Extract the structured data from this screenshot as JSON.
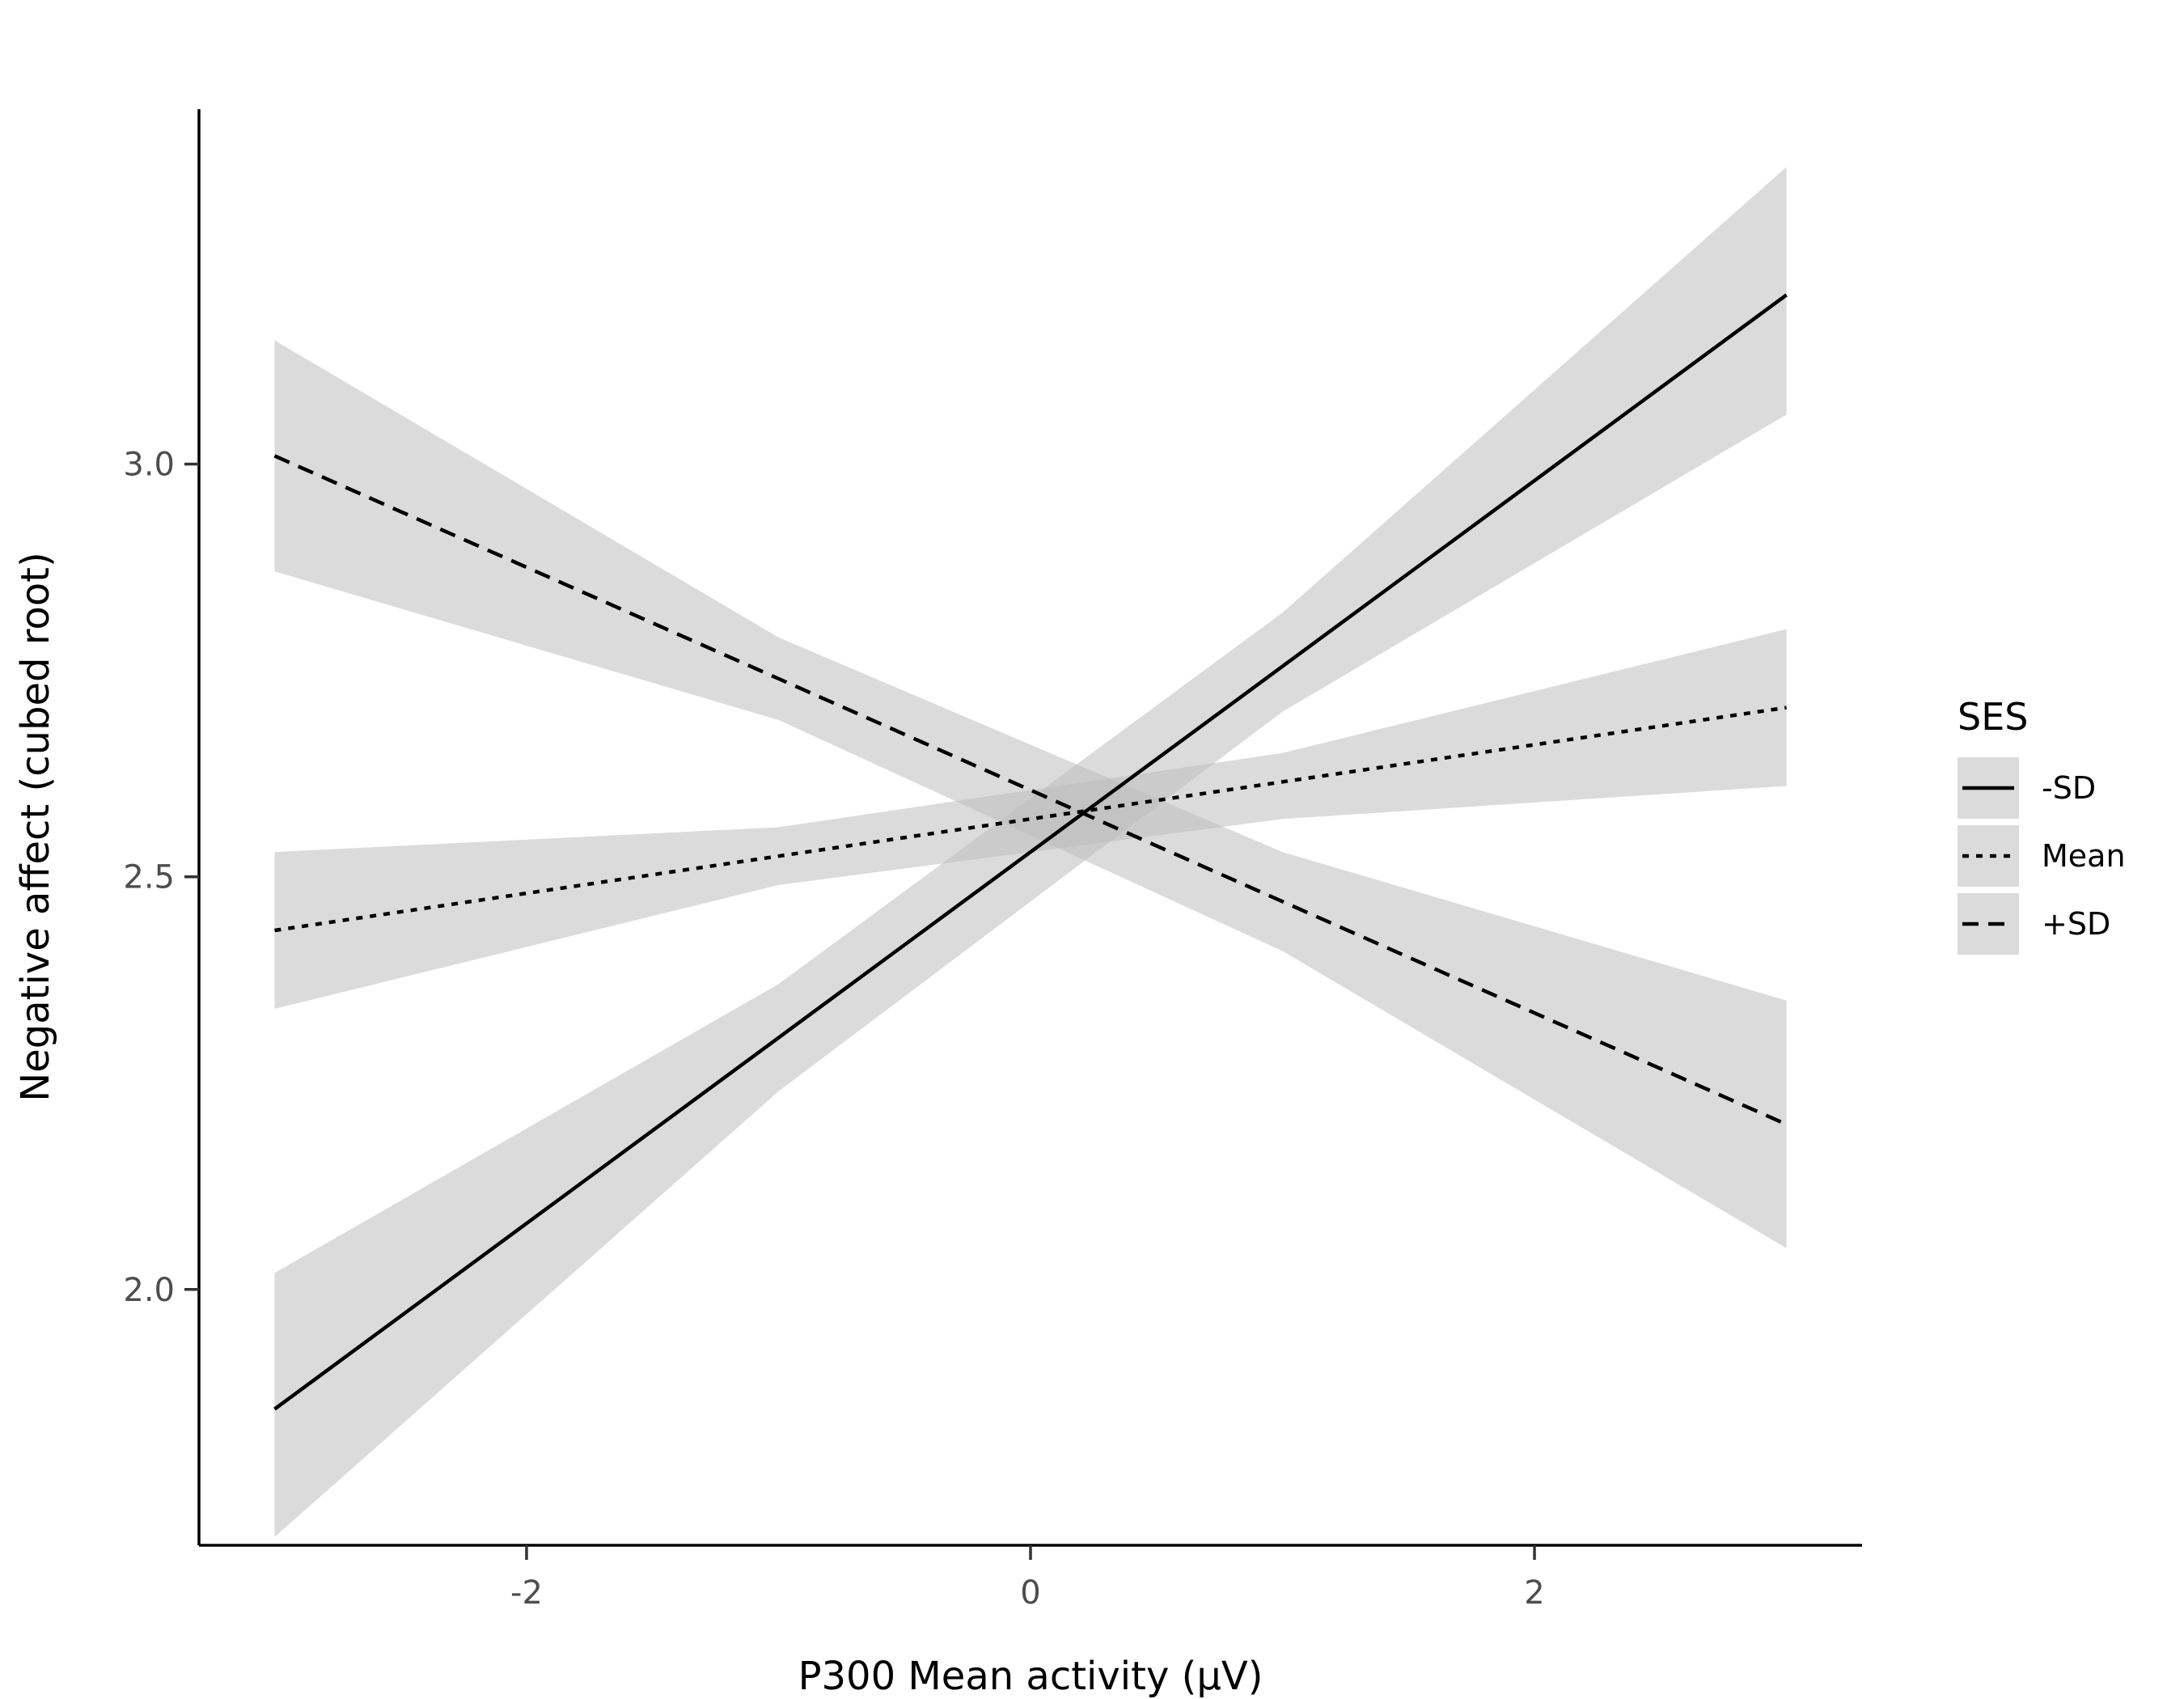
{
  "chart_data": {
    "type": "line",
    "title": "",
    "xlabel": "P300 Mean activity (µV)",
    "ylabel": "Negative affect (cubed root)",
    "xlim": [
      -3.3,
      3.3
    ],
    "ylim": [
      1.69,
      3.43
    ],
    "x_ticks": [
      -2,
      0,
      2
    ],
    "x_tick_labels": [
      "-2",
      "0",
      "2"
    ],
    "y_ticks": [
      2.0,
      2.5,
      3.0
    ],
    "y_tick_labels": [
      "2.0",
      "2.5",
      "3.0"
    ],
    "grid": false,
    "legend": {
      "title": "SES",
      "position": "right"
    },
    "ribbon_color": "#bdbdbd",
    "line_color": "#000000",
    "series": [
      {
        "name": "-SD",
        "line_style": "solid",
        "x": [
          -3,
          -1,
          1,
          3
        ],
        "y": [
          1.855,
          2.305,
          2.755,
          3.205
        ],
        "ci_lower": [
          1.7,
          2.24,
          2.7,
          3.06
        ],
        "ci_upper": [
          2.02,
          2.37,
          2.82,
          3.36
        ]
      },
      {
        "name": "Mean",
        "line_style": "dotted",
        "x": [
          -3,
          -1,
          1,
          3
        ],
        "y": [
          2.435,
          2.525,
          2.615,
          2.705
        ],
        "ci_lower": [
          2.34,
          2.49,
          2.57,
          2.61
        ],
        "ci_upper": [
          2.53,
          2.56,
          2.65,
          2.8
        ]
      },
      {
        "name": "+SD",
        "line_style": "dashed",
        "x": [
          -3,
          -1,
          1,
          3
        ],
        "y": [
          3.01,
          2.74,
          2.47,
          2.2
        ],
        "ci_lower": [
          2.87,
          2.69,
          2.41,
          2.05
        ],
        "ci_upper": [
          3.15,
          2.79,
          2.53,
          2.35
        ]
      }
    ]
  }
}
